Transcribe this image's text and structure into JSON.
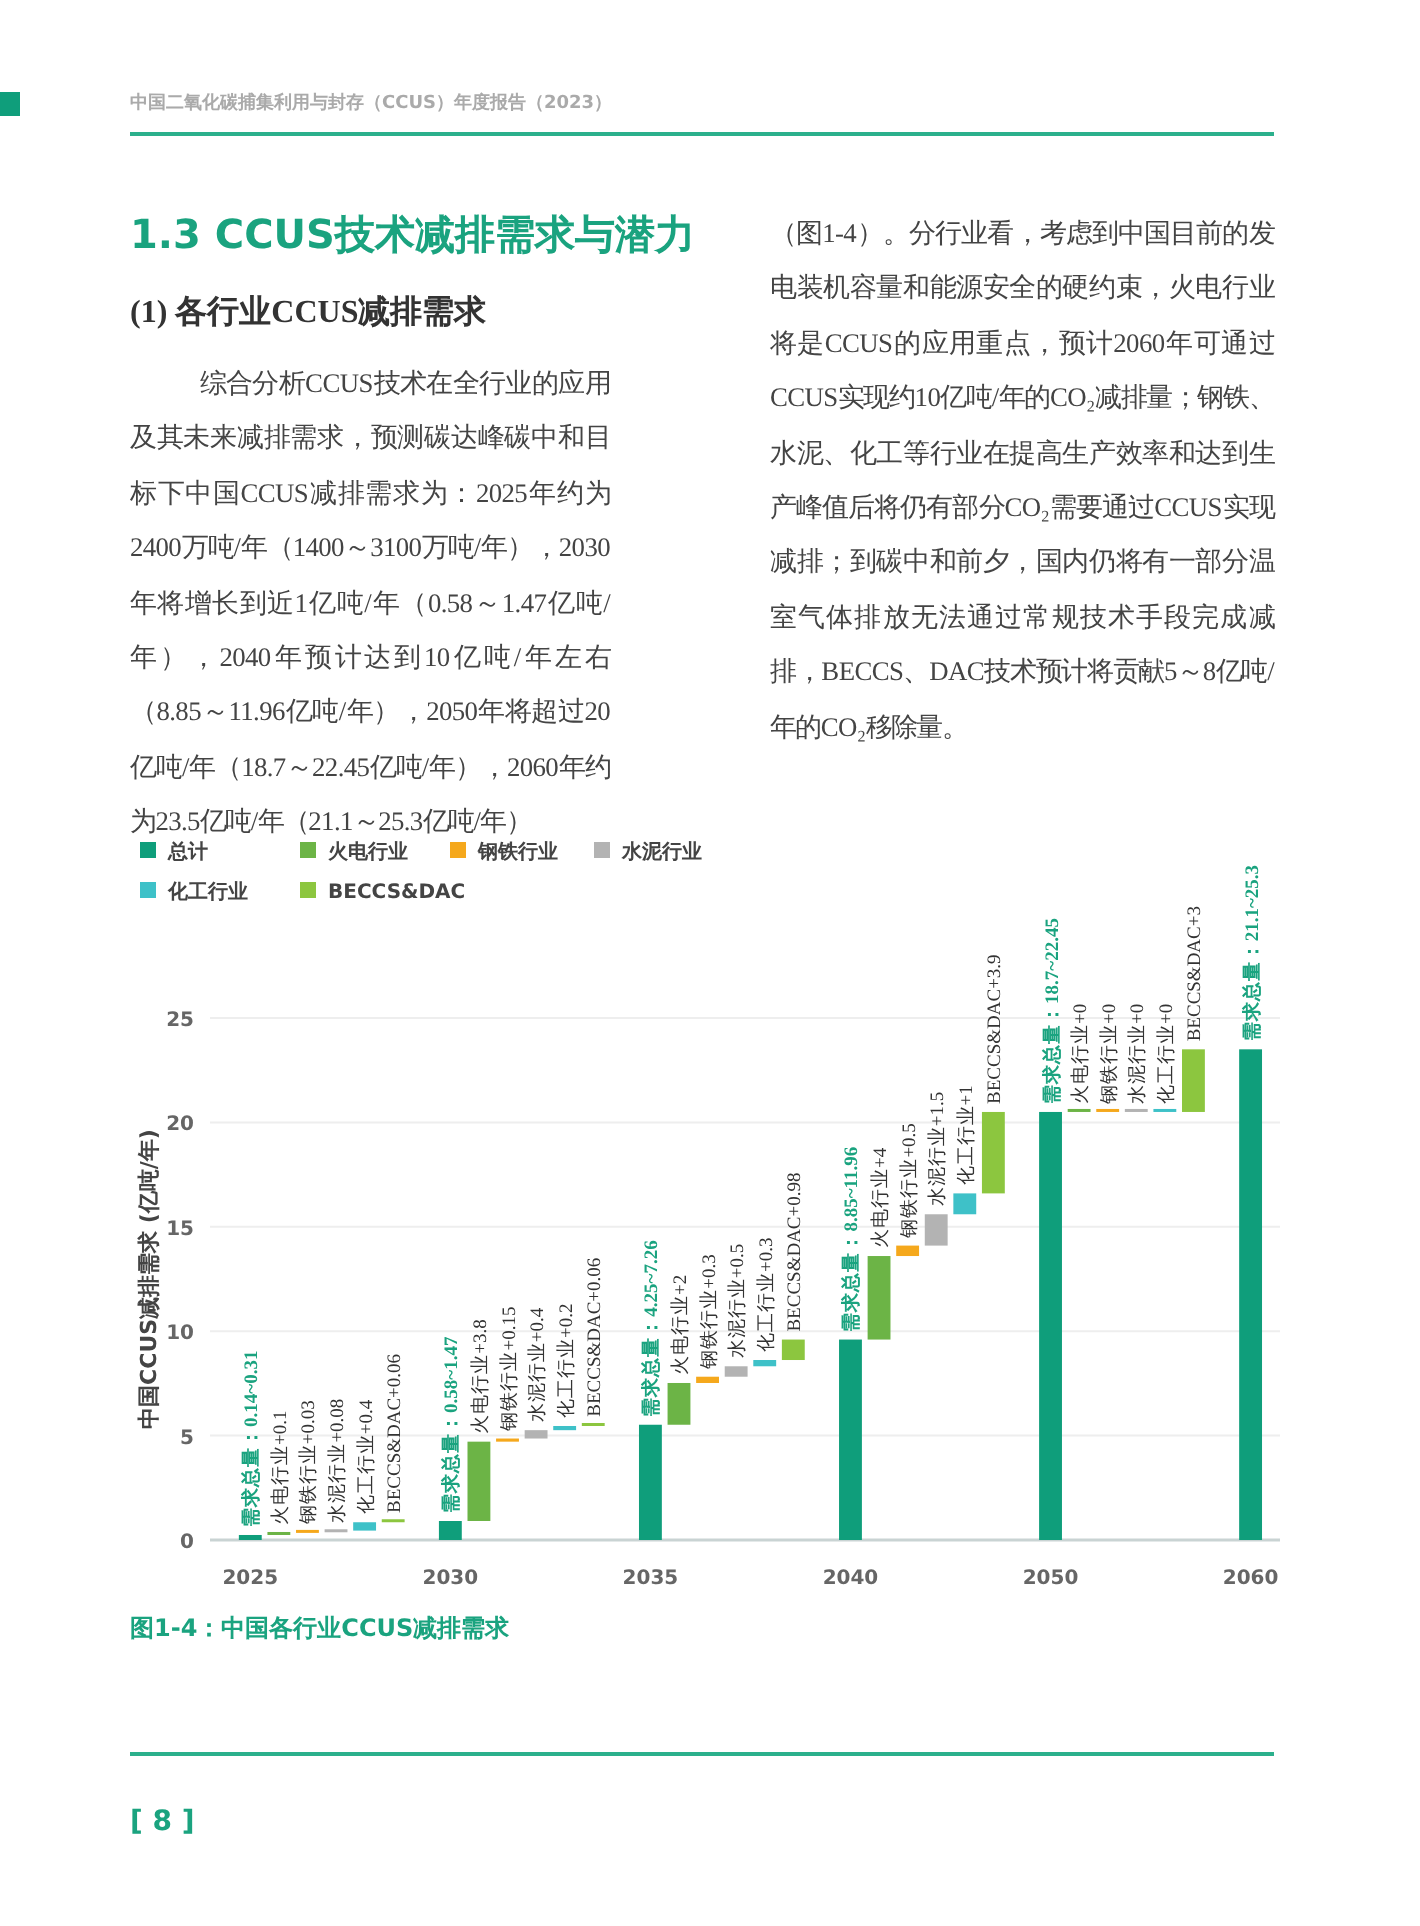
{
  "chart_data": {
    "type": "bar",
    "title": "图1-4：中国各行业CCUS减排需求",
    "ylabel": "中国CCUS减排需求 (亿吨/年)",
    "categories": [
      "2025",
      null,
      null,
      null,
      null,
      null,
      null,
      "2030",
      null,
      null,
      null,
      null,
      null,
      null,
      "2035",
      null,
      null,
      null,
      null,
      null,
      null,
      "2040",
      null,
      null,
      null,
      null,
      null,
      null,
      "2050",
      null,
      null,
      null,
      null,
      null,
      null,
      "2060"
    ],
    "series": [
      {
        "name": "总计",
        "color": "#0f9e7b",
        "values": [
          0.24,
          null,
          null,
          null,
          null,
          null,
          null,
          0.91,
          null,
          null,
          null,
          null,
          null,
          null,
          5.52,
          null,
          null,
          null,
          null,
          null,
          null,
          9.6,
          null,
          null,
          null,
          null,
          null,
          null,
          20.5,
          null,
          null,
          null,
          null,
          null,
          null,
          23.5
        ],
        "base": [
          0,
          null,
          null,
          null,
          null,
          null,
          null,
          0,
          null,
          null,
          null,
          null,
          null,
          null,
          0,
          null,
          null,
          null,
          null,
          null,
          null,
          0,
          null,
          null,
          null,
          null,
          null,
          null,
          0,
          null,
          null,
          null,
          null,
          null,
          null,
          0
        ],
        "value_labels": [
          "需求总量：0.14~0.31",
          null,
          null,
          null,
          null,
          null,
          null,
          "需求总量：0.58~1.47",
          null,
          null,
          null,
          null,
          null,
          null,
          "需求总量：4.25~7.26",
          null,
          null,
          null,
          null,
          null,
          null,
          "需求总量：8.85~11.96",
          null,
          null,
          null,
          null,
          null,
          null,
          "需求总量：18.7~22.45",
          null,
          null,
          null,
          null,
          null,
          null,
          "需求总量：21.1~25.3"
        ]
      },
      {
        "name": "火电行业",
        "color": "#6cb446",
        "values": [
          null,
          0.1,
          null,
          null,
          null,
          null,
          null,
          null,
          3.8,
          null,
          null,
          null,
          null,
          null,
          null,
          2,
          null,
          null,
          null,
          null,
          null,
          null,
          4,
          null,
          null,
          null,
          null,
          null,
          null,
          0,
          null,
          null,
          null,
          null,
          null,
          null
        ],
        "base": [
          null,
          0.24,
          null,
          null,
          null,
          null,
          null,
          null,
          0.91,
          null,
          null,
          null,
          null,
          null,
          null,
          5.52,
          null,
          null,
          null,
          null,
          null,
          null,
          9.6,
          null,
          null,
          null,
          null,
          null,
          null,
          20.5,
          null,
          null,
          null,
          null,
          null,
          null
        ],
        "value_labels": [
          null,
          "火电行业+0.1",
          null,
          null,
          null,
          null,
          null,
          null,
          "火电行业+3.8",
          null,
          null,
          null,
          null,
          null,
          null,
          "火电行业+2",
          null,
          null,
          null,
          null,
          null,
          null,
          "火电行业+4",
          null,
          null,
          null,
          null,
          null,
          null,
          "火电行业+0",
          null,
          null,
          null,
          null,
          null,
          null
        ]
      },
      {
        "name": "钢铁行业",
        "color": "#f5a81c",
        "values": [
          null,
          null,
          0.03,
          null,
          null,
          null,
          null,
          null,
          null,
          0.15,
          null,
          null,
          null,
          null,
          null,
          null,
          0.3,
          null,
          null,
          null,
          null,
          null,
          null,
          0.5,
          null,
          null,
          null,
          null,
          null,
          null,
          0,
          null,
          null,
          null,
          null,
          null
        ],
        "base": [
          null,
          null,
          0.34,
          null,
          null,
          null,
          null,
          null,
          null,
          4.71,
          null,
          null,
          null,
          null,
          null,
          null,
          7.52,
          null,
          null,
          null,
          null,
          null,
          null,
          13.6,
          null,
          null,
          null,
          null,
          null,
          null,
          20.5,
          null,
          null,
          null,
          null,
          null
        ],
        "value_labels": [
          null,
          null,
          "钢铁行业+0.03",
          null,
          null,
          null,
          null,
          null,
          null,
          "钢铁行业+0.15",
          null,
          null,
          null,
          null,
          null,
          null,
          "钢铁行业+0.3",
          null,
          null,
          null,
          null,
          null,
          null,
          "钢铁行业+0.5",
          null,
          null,
          null,
          null,
          null,
          null,
          "钢铁行业+0",
          null,
          null,
          null,
          null,
          null
        ]
      },
      {
        "name": "水泥行业",
        "color": "#b3b3b3",
        "values": [
          null,
          null,
          null,
          0.08,
          null,
          null,
          null,
          null,
          null,
          null,
          0.4,
          null,
          null,
          null,
          null,
          null,
          null,
          0.5,
          null,
          null,
          null,
          null,
          null,
          null,
          1.5,
          null,
          null,
          null,
          null,
          null,
          null,
          0,
          null,
          null,
          null,
          null
        ],
        "base": [
          null,
          null,
          null,
          0.37,
          null,
          null,
          null,
          null,
          null,
          null,
          4.86,
          null,
          null,
          null,
          null,
          null,
          null,
          7.82,
          null,
          null,
          null,
          null,
          null,
          null,
          14.1,
          null,
          null,
          null,
          null,
          null,
          null,
          20.5,
          null,
          null,
          null,
          null
        ],
        "value_labels": [
          null,
          null,
          null,
          "水泥行业+0.08",
          null,
          null,
          null,
          null,
          null,
          null,
          "水泥行业+0.4",
          null,
          null,
          null,
          null,
          null,
          null,
          "水泥行业+0.5",
          null,
          null,
          null,
          null,
          null,
          null,
          "水泥行业+1.5",
          null,
          null,
          null,
          null,
          null,
          null,
          "水泥行业+0",
          null,
          null,
          null,
          null
        ]
      },
      {
        "name": "化工行业",
        "color": "#3ec1c8",
        "values": [
          null,
          null,
          null,
          null,
          0.4,
          null,
          null,
          null,
          null,
          null,
          null,
          0.2,
          null,
          null,
          null,
          null,
          null,
          null,
          0.3,
          null,
          null,
          null,
          null,
          null,
          null,
          1,
          null,
          null,
          null,
          null,
          null,
          null,
          0,
          null,
          null,
          null
        ],
        "base": [
          null,
          null,
          null,
          null,
          0.45,
          null,
          null,
          null,
          null,
          null,
          null,
          5.26,
          null,
          null,
          null,
          null,
          null,
          null,
          8.32,
          null,
          null,
          null,
          null,
          null,
          null,
          15.6,
          null,
          null,
          null,
          null,
          null,
          null,
          20.5,
          null,
          null,
          null
        ],
        "value_labels": [
          null,
          null,
          null,
          null,
          "化工行业+0.4",
          null,
          null,
          null,
          null,
          null,
          null,
          "化工行业+0.2",
          null,
          null,
          null,
          null,
          null,
          null,
          "化工行业+0.3",
          null,
          null,
          null,
          null,
          null,
          null,
          "化工行业+1",
          null,
          null,
          null,
          null,
          null,
          null,
          "化工行业+0",
          null,
          null,
          null
        ]
      },
      {
        "name": "BECCS&DAC",
        "color": "#8cc63f",
        "values": [
          null,
          null,
          null,
          null,
          null,
          0.06,
          null,
          null,
          null,
          null,
          null,
          null,
          0.06,
          null,
          null,
          null,
          null,
          null,
          null,
          0.98,
          null,
          null,
          null,
          null,
          null,
          null,
          3.9,
          null,
          null,
          null,
          null,
          null,
          null,
          3,
          null,
          null
        ],
        "base": [
          null,
          null,
          null,
          null,
          null,
          0.85,
          null,
          null,
          null,
          null,
          null,
          null,
          5.46,
          null,
          null,
          null,
          null,
          null,
          null,
          8.62,
          null,
          null,
          null,
          null,
          null,
          null,
          16.6,
          null,
          null,
          null,
          null,
          null,
          null,
          20.5,
          null,
          null
        ],
        "value_labels": [
          null,
          null,
          null,
          null,
          null,
          "BECCS&DAC+0.06",
          null,
          null,
          null,
          null,
          null,
          null,
          "BECCS&DAC+0.06",
          null,
          null,
          null,
          null,
          null,
          null,
          "BECCS&DAC+0.98",
          null,
          null,
          null,
          null,
          null,
          null,
          "BECCS&DAC+3.9",
          null,
          null,
          null,
          null,
          null,
          null,
          "BECCS&DAC+3",
          null,
          null
        ]
      }
    ],
    "ylim": [
      0,
      25
    ],
    "yticks": [
      0,
      5,
      10,
      15,
      20,
      25
    ],
    "grid": "y",
    "legend": "top left",
    "annotations": [
      "中国二氧化碳捕集利用与封存（CCUS）年度报告（2023）",
      "1.3  CCUS技术减排需求与潜力",
      "(1)  各行业CCUS减排需求",
      "综合分析CCUS技术在全行业的应用及其未来减排需求，预测碳达峰碳中和目标下中国CCUS减排需求为：2025年约为2400万吨/年（1400～3100万吨/年），2030年将增长到近1亿吨/年（0.58～1.47亿吨/年），2040年预计达到10亿吨/年左右（8.85～11.96亿吨/年），2050年将超过20亿吨/年（18.7～22.45亿吨/年），2060年约为23.5亿吨/年（21.1～25.3亿吨/年）",
      "（图1-4）。分行业看，考虑到中国目前的发电装机容量和能源安全的硬约束，火电行业将是CCUS的应用重点，预计2060年可通过CCUS实现约10亿吨/年的CO₂减排量；钢铁、水泥、化工等行业在提高生产效率和达到生产峰值后将仍有部分CO₂需要通过CCUS实现减排；到碳中和前夕，国内仍将有一部分温室气体排放无法通过常规技术手段完成减排，BECCS、DAC技术预计将贡献5～8亿吨/年的CO₂移除量。",
      "[ 8 ]"
    ]
  }
}
